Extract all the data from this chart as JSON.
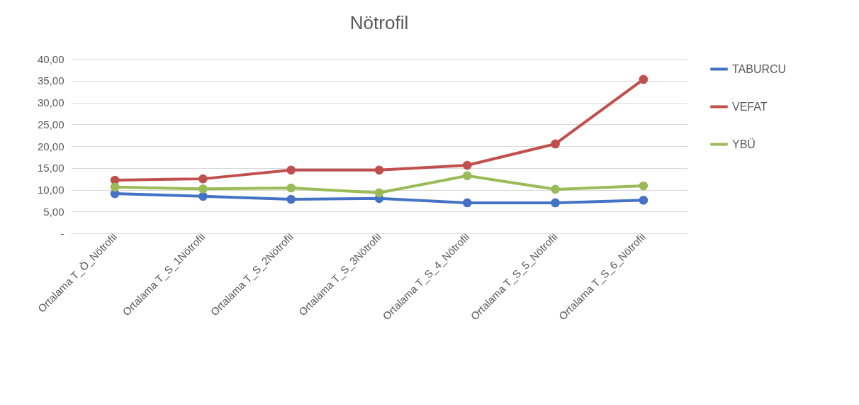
{
  "chart_data": {
    "type": "line",
    "title": "Nötrofil",
    "categories": [
      "Ortalama T_Ö_Nötrofil",
      "Ortalama T_S_1Nötrofil",
      "Ortalama T_S_2Nötrofil",
      "Ortalama T_S_3Nötrofil",
      "Ortalama T_S_4_Nötrofil",
      "Ortalama T_S_5_Nötrofil",
      "Ortalama T_S_6_Nötrofil"
    ],
    "series": [
      {
        "name": "TABURCU",
        "color": "#4472c4",
        "values": [
          9.1,
          8.5,
          7.8,
          8.0,
          7.0,
          7.0,
          7.6
        ]
      },
      {
        "name": "VEFAT",
        "color": "#c0504d",
        "values": [
          12.2,
          12.5,
          14.5,
          14.5,
          15.6,
          20.5,
          35.3
        ]
      },
      {
        "name": "YBÜ",
        "color": "#9bbb59",
        "values": [
          10.6,
          10.2,
          10.4,
          9.3,
          13.2,
          10.1,
          10.9
        ]
      }
    ],
    "ylim": [
      0,
      40
    ],
    "yticks": [
      {
        "value": 0,
        "label": "-"
      },
      {
        "value": 5,
        "label": "5,00"
      },
      {
        "value": 10,
        "label": "10,00"
      },
      {
        "value": 15,
        "label": "15,00"
      },
      {
        "value": 20,
        "label": "20,00"
      },
      {
        "value": 25,
        "label": "25,00"
      },
      {
        "value": 30,
        "label": "30,00"
      },
      {
        "value": 35,
        "label": "35,00"
      },
      {
        "value": 40,
        "label": "40,00"
      }
    ],
    "grid": "y",
    "legend": "right",
    "marker": "circle",
    "line_style": "solid"
  }
}
